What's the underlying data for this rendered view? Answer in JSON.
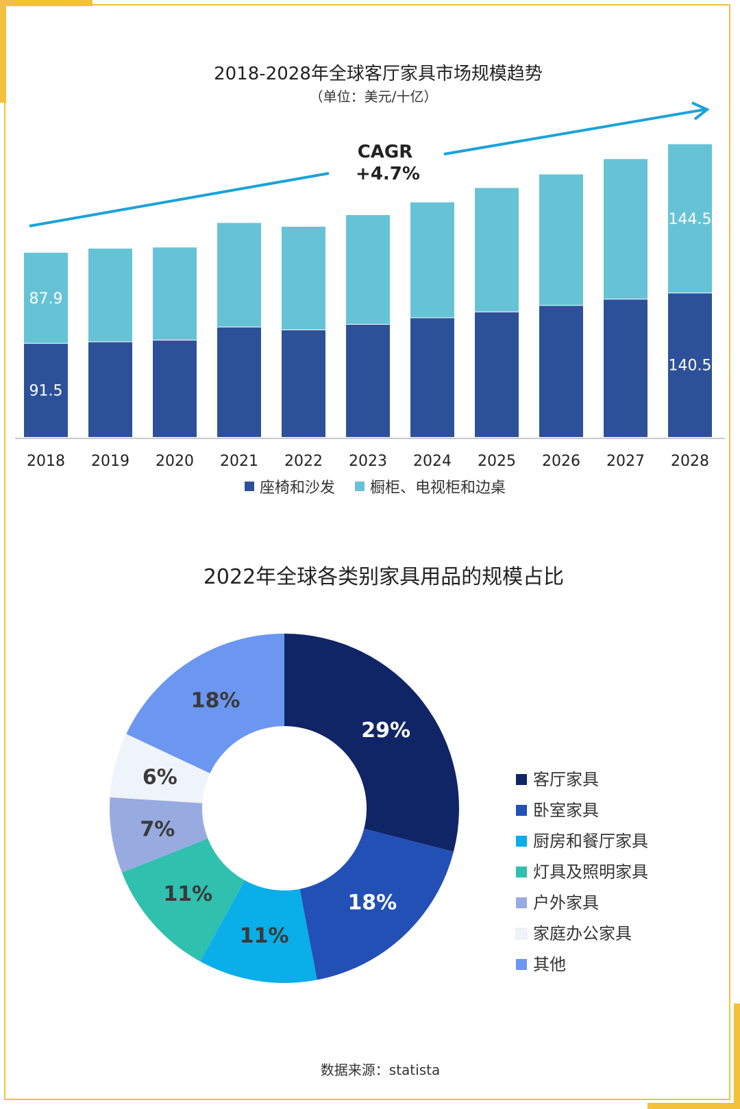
{
  "colors": {
    "frame": "#f3c13a",
    "arrow": "#1aa3d9",
    "series_dark": "#2d5199",
    "series_light": "#66c3d6"
  },
  "chart_data": [
    {
      "type": "bar",
      "stacked": true,
      "title": "2018-2028年全球客厅家具市场规模趋势",
      "subtitle": "（单位：美元/十亿）",
      "categories": [
        "2018",
        "2019",
        "2020",
        "2021",
        "2022",
        "2023",
        "2024",
        "2025",
        "2026",
        "2027",
        "2028"
      ],
      "series": [
        {
          "name": "座椅和沙发",
          "color": "#2d5199",
          "values": [
            91.5,
            93.0,
            94.6,
            107.4,
            104.6,
            110.0,
            116.4,
            122.1,
            128.4,
            134.5,
            140.5
          ]
        },
        {
          "name": "橱柜、电视柜和边桌",
          "color": "#66c3d6",
          "values": [
            87.9,
            90.4,
            89.9,
            101.0,
            100.1,
            106.0,
            112.0,
            120.3,
            127.2,
            136.0,
            144.5
          ]
        }
      ],
      "data_labels": [
        {
          "category": "2018",
          "series": 0,
          "text": "91.5"
        },
        {
          "category": "2018",
          "series": 1,
          "text": "87.9"
        },
        {
          "category": "2028",
          "series": 0,
          "text": "140.5"
        },
        {
          "category": "2028",
          "series": 1,
          "text": "144.5"
        }
      ],
      "annotation": {
        "line1": "CAGR",
        "line2": "+4.7%"
      },
      "legend_position": "bottom",
      "ylim": [
        0,
        300
      ]
    },
    {
      "type": "pie",
      "donut": true,
      "title": "2022年全球各类别家具用品的规模占比",
      "slices": [
        {
          "name": "客厅家具",
          "value": 29,
          "label": "29%",
          "color": "#0f2566",
          "text_color": "#ffffff"
        },
        {
          "name": "卧室家具",
          "value": 18,
          "label": "18%",
          "color": "#2350b5",
          "text_color": "#ffffff"
        },
        {
          "name": "厨房和餐厅家具",
          "value": 11,
          "label": "11%",
          "color": "#0aaee8",
          "text_color": "#3a3a3a"
        },
        {
          "name": "灯具及照明家具",
          "value": 11,
          "label": "11%",
          "color": "#2fc0ae",
          "text_color": "#3a3a3a"
        },
        {
          "name": "户外家具",
          "value": 7,
          "label": "7%",
          "color": "#98abe0",
          "text_color": "#3a3a3a"
        },
        {
          "name": "家庭办公家具",
          "value": 6,
          "label": "6%",
          "color": "#eff3fa",
          "text_color": "#3a3a3a"
        },
        {
          "name": "其他",
          "value": 18,
          "label": "18%",
          "color": "#6b97f0",
          "text_color": "#3a3a3a"
        }
      ],
      "legend_position": "right"
    }
  ],
  "footer": {
    "source": "数据来源：statista"
  }
}
